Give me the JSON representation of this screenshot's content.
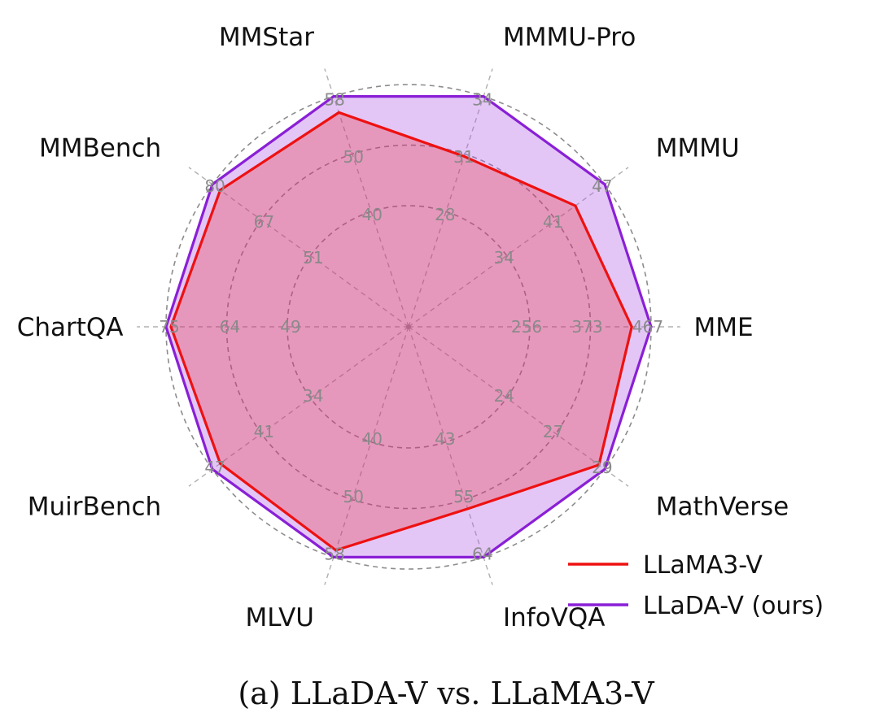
{
  "chart_data": {
    "type": "radar",
    "caption": "(a) LLaDA-V vs. LLaMA3-V",
    "axes": [
      {
        "name": "MME",
        "ticks": [
          "256",
          "373",
          "467"
        ],
        "max": 467
      },
      {
        "name": "MMMU",
        "ticks": [
          "34",
          "41",
          "47"
        ],
        "max": 47
      },
      {
        "name": "MMMU-Pro",
        "ticks": [
          "28",
          "31",
          "34"
        ],
        "max": 34
      },
      {
        "name": "MMStar",
        "ticks": [
          "40",
          "50",
          "58"
        ],
        "max": 58
      },
      {
        "name": "MMBench",
        "ticks": [
          "51",
          "67",
          "80"
        ],
        "max": 80
      },
      {
        "name": "ChartQA",
        "ticks": [
          "49",
          "64",
          "75"
        ],
        "max": 75
      },
      {
        "name": "MuirBench",
        "ticks": [
          "34",
          "41",
          "47"
        ],
        "max": 47
      },
      {
        "name": "MLVU",
        "ticks": [
          "40",
          "50",
          "58"
        ],
        "max": 58
      },
      {
        "name": "InfoVQA",
        "ticks": [
          "43",
          "55",
          "64"
        ],
        "max": 64
      },
      {
        "name": "MathVerse",
        "ticks": [
          "24",
          "27",
          "29"
        ],
        "max": 29
      }
    ],
    "series": [
      {
        "name": "LLaMA3-V",
        "color": "#ee1111",
        "fill": "#ee1111",
        "fill_opacity": 0.25,
        "values_normalized": [
          0.92,
          0.85,
          0.74,
          0.93,
          0.96,
          0.98,
          0.96,
          0.97,
          0.79,
          0.97
        ]
      },
      {
        "name": "LLaDA-V (ours)",
        "color": "#8a1fd6",
        "fill": "#b05ce6",
        "fill_opacity": 0.35,
        "values_normalized": [
          1.0,
          1.0,
          1.0,
          1.0,
          1.0,
          1.0,
          1.0,
          1.0,
          1.0,
          1.0
        ]
      }
    ],
    "legend_position": "bottom-right",
    "grid": true
  }
}
